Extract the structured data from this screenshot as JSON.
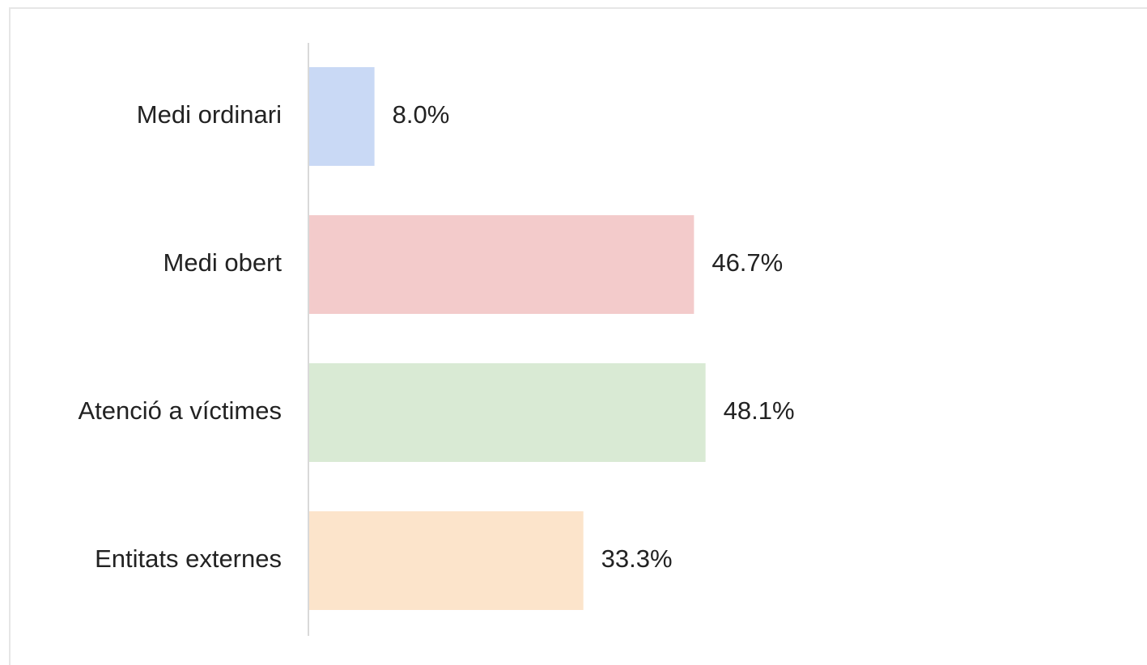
{
  "chart_data": {
    "type": "bar",
    "orientation": "horizontal",
    "categories": [
      "Medi ordinari",
      "Medi obert",
      "Atenció a víctimes",
      "Entitats externes"
    ],
    "values": [
      8.0,
      46.7,
      48.1,
      33.3
    ],
    "value_labels": [
      "8.0%",
      "46.7%",
      "48.1%",
      "33.3%"
    ],
    "colors": [
      "#c9d9f5",
      "#f3cbcb",
      "#d9ead4",
      "#fce4cb"
    ]
  }
}
